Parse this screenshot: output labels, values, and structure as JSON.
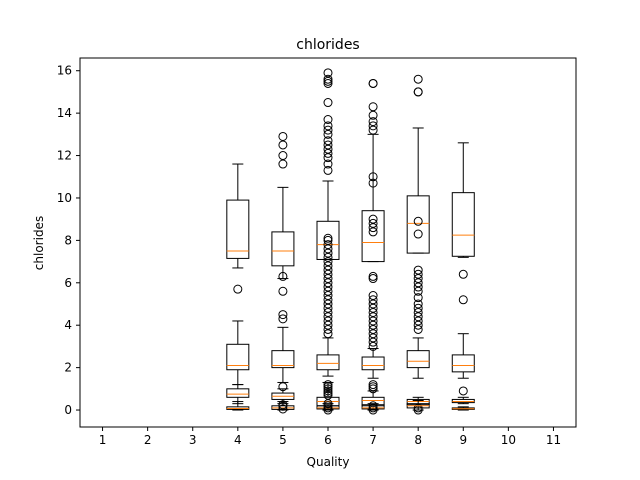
{
  "chart_data": {
    "type": "box",
    "title": "chlorides",
    "xlabel": "Quality",
    "ylabel": "chlorides",
    "xticks": [
      "1",
      "2",
      "3",
      "4",
      "5",
      "6",
      "7",
      "8",
      "9",
      "10",
      "11"
    ],
    "yticks": [
      "0",
      "2",
      "4",
      "6",
      "8",
      "10",
      "12",
      "14",
      "16"
    ],
    "xlim": [
      0.5,
      11.5
    ],
    "ylim": [
      -0.8,
      16.6
    ],
    "grid": false,
    "box_color": "#000000",
    "median_color": "#ff7f0e",
    "groups": [
      {
        "x": 4,
        "boxes": [
          {
            "whisker_low": 6.7,
            "q1": 7.15,
            "median": 7.5,
            "q3": 9.9,
            "whisker_high": 11.6,
            "outliers": [
              5.7
            ]
          },
          {
            "whisker_low": 1.2,
            "q1": 1.9,
            "median": 2.1,
            "q3": 3.1,
            "whisker_high": 4.2,
            "outliers": []
          },
          {
            "whisker_low": 0.3,
            "q1": 0.6,
            "median": 0.75,
            "q3": 1.0,
            "whisker_high": 1.2,
            "outliers": []
          },
          {
            "whisker_low": 0.0,
            "q1": 0.03,
            "median": 0.07,
            "q3": 0.15,
            "whisker_high": 0.4,
            "outliers": []
          }
        ]
      },
      {
        "x": 5,
        "boxes": [
          {
            "whisker_low": 6.2,
            "q1": 6.8,
            "median": 7.5,
            "q3": 8.4,
            "whisker_high": 10.5,
            "outliers": [
              11.6,
              12.0,
              12.5,
              12.9
            ]
          },
          {
            "whisker_low": 1.3,
            "q1": 2.0,
            "median": 2.1,
            "q3": 2.8,
            "whisker_high": 3.9,
            "outliers": [
              4.3,
              4.5,
              5.6,
              6.3
            ]
          },
          {
            "whisker_low": 0.3,
            "q1": 0.5,
            "median": 0.65,
            "q3": 0.8,
            "whisker_high": 1.0,
            "outliers": [
              1.1
            ]
          },
          {
            "whisker_low": 0.0,
            "q1": 0.03,
            "median": 0.1,
            "q3": 0.2,
            "whisker_high": 0.4,
            "outliers": [
              0.05,
              0.18,
              0.25
            ]
          }
        ]
      },
      {
        "x": 6,
        "boxes": [
          {
            "whisker_low": 7.1,
            "q1": 7.1,
            "median": 7.8,
            "q3": 8.9,
            "whisker_high": 10.8,
            "outliers": [
              11.3,
              11.6,
              11.9,
              12.1,
              12.3,
              12.5,
              12.7,
              13.0,
              13.2,
              13.4,
              13.7,
              14.5,
              15.4,
              15.5,
              15.6,
              15.9,
              6.2,
              6.4,
              6.6,
              6.8,
              7.0,
              7.2,
              7.4,
              7.6,
              7.8,
              8.0,
              8.1
            ]
          },
          {
            "whisker_low": 1.6,
            "q1": 1.9,
            "median": 2.2,
            "q3": 2.6,
            "whisker_high": 3.4,
            "outliers": [
              3.6,
              3.8,
              4.0,
              4.2,
              4.4,
              4.6,
              4.8,
              5.0,
              5.2,
              5.4,
              5.6,
              5.8,
              6.0
            ]
          },
          {
            "whisker_low": 0.0,
            "q1": 0.2,
            "median": 0.4,
            "q3": 0.6,
            "whisker_high": 1.3,
            "outliers": [
              0.7,
              0.8,
              0.9,
              1.0,
              1.1,
              1.2
            ]
          },
          {
            "whisker_low": 0.0,
            "q1": 0.05,
            "median": 0.1,
            "q3": 0.2,
            "whisker_high": 0.3,
            "outliers": [
              0.0,
              0.1,
              0.2,
              0.3
            ]
          }
        ]
      },
      {
        "x": 7,
        "boxes": [
          {
            "whisker_low": 7.0,
            "q1": 7.0,
            "median": 7.9,
            "q3": 9.4,
            "whisker_high": 13.0,
            "outliers": [
              13.2,
              13.4,
              13.6,
              13.9,
              14.3,
              15.4,
              15.4,
              10.7,
              11.0,
              8.4,
              8.6,
              8.8,
              9.0
            ]
          },
          {
            "whisker_low": 1.5,
            "q1": 1.9,
            "median": 2.1,
            "q3": 2.5,
            "whisker_high": 2.9,
            "outliers": [
              3.0,
              3.2,
              3.4,
              3.6,
              3.8,
              4.0,
              4.2,
              4.4,
              4.6,
              4.8,
              5.0,
              5.2,
              5.4,
              6.2,
              6.3
            ]
          },
          {
            "whisker_low": 0.0,
            "q1": 0.2,
            "median": 0.45,
            "q3": 0.6,
            "whisker_high": 0.9,
            "outliers": [
              1.0,
              1.1,
              1.2
            ]
          },
          {
            "whisker_low": 0.0,
            "q1": 0.05,
            "median": 0.1,
            "q3": 0.25,
            "whisker_high": 0.3,
            "outliers": [
              0.0,
              0.1,
              0.2
            ]
          }
        ]
      },
      {
        "x": 8,
        "boxes": [
          {
            "whisker_low": 7.4,
            "q1": 7.4,
            "median": 8.8,
            "q3": 10.1,
            "whisker_high": 13.3,
            "outliers": [
              15.0,
              15.0,
              15.6,
              8.3,
              8.9
            ]
          },
          {
            "whisker_low": 1.5,
            "q1": 2.0,
            "median": 2.3,
            "q3": 2.8,
            "whisker_high": 3.4,
            "outliers": [
              3.8,
              4.0,
              4.2,
              4.4,
              4.6,
              4.8,
              5.0,
              5.3,
              5.6,
              5.8,
              6.0,
              6.2,
              6.4,
              6.6
            ]
          },
          {
            "whisker_low": 0.1,
            "q1": 0.25,
            "median": 0.4,
            "q3": 0.5,
            "whisker_high": 0.6,
            "outliers": [
              0.0,
              0.1
            ]
          },
          {
            "whisker_low": 0.0,
            "q1": 0.1,
            "median": 0.2,
            "q3": 0.3,
            "whisker_high": 0.45,
            "outliers": []
          }
        ]
      },
      {
        "x": 9,
        "boxes": [
          {
            "whisker_low": 7.2,
            "q1": 7.25,
            "median": 8.25,
            "q3": 10.25,
            "whisker_high": 12.6,
            "outliers": [
              6.4,
              5.2
            ]
          },
          {
            "whisker_low": 1.5,
            "q1": 1.8,
            "median": 2.1,
            "q3": 2.6,
            "whisker_high": 3.6,
            "outliers": []
          },
          {
            "whisker_low": 0.3,
            "q1": 0.35,
            "median": 0.4,
            "q3": 0.5,
            "whisker_high": 0.6,
            "outliers": [
              0.9
            ]
          },
          {
            "whisker_low": 0.0,
            "q1": 0.03,
            "median": 0.06,
            "q3": 0.1,
            "whisker_high": 0.15,
            "outliers": []
          }
        ]
      }
    ]
  }
}
